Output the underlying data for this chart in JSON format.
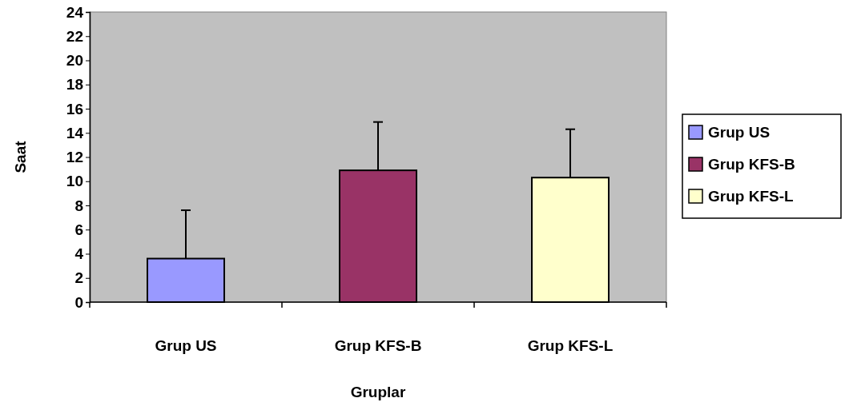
{
  "chart_data": {
    "type": "bar",
    "xlabel": "Gruplar",
    "ylabel": "Saat",
    "categories": [
      "Grup US",
      "Grup KFS-B",
      "Grup KFS-L"
    ],
    "series": [
      {
        "name": "Grup US",
        "color": "#9999ff",
        "values": [
          3.6,
          null,
          null
        ],
        "errors": [
          [
            3.6,
            7.6
          ],
          null,
          null
        ]
      },
      {
        "name": "Grup KFS-B",
        "color": "#993366",
        "values": [
          null,
          10.9,
          null
        ],
        "errors": [
          null,
          [
            10.9,
            14.9
          ],
          null
        ]
      },
      {
        "name": "Grup KFS-L",
        "color": "#ffffcc",
        "values": [
          null,
          null,
          10.3
        ],
        "errors": [
          null,
          null,
          [
            10.3,
            14.3
          ]
        ]
      }
    ],
    "ylim": [
      0,
      24
    ],
    "yticks": [
      0,
      2,
      4,
      6,
      8,
      10,
      12,
      14,
      16,
      18,
      20,
      22,
      24
    ],
    "legend": "right"
  }
}
